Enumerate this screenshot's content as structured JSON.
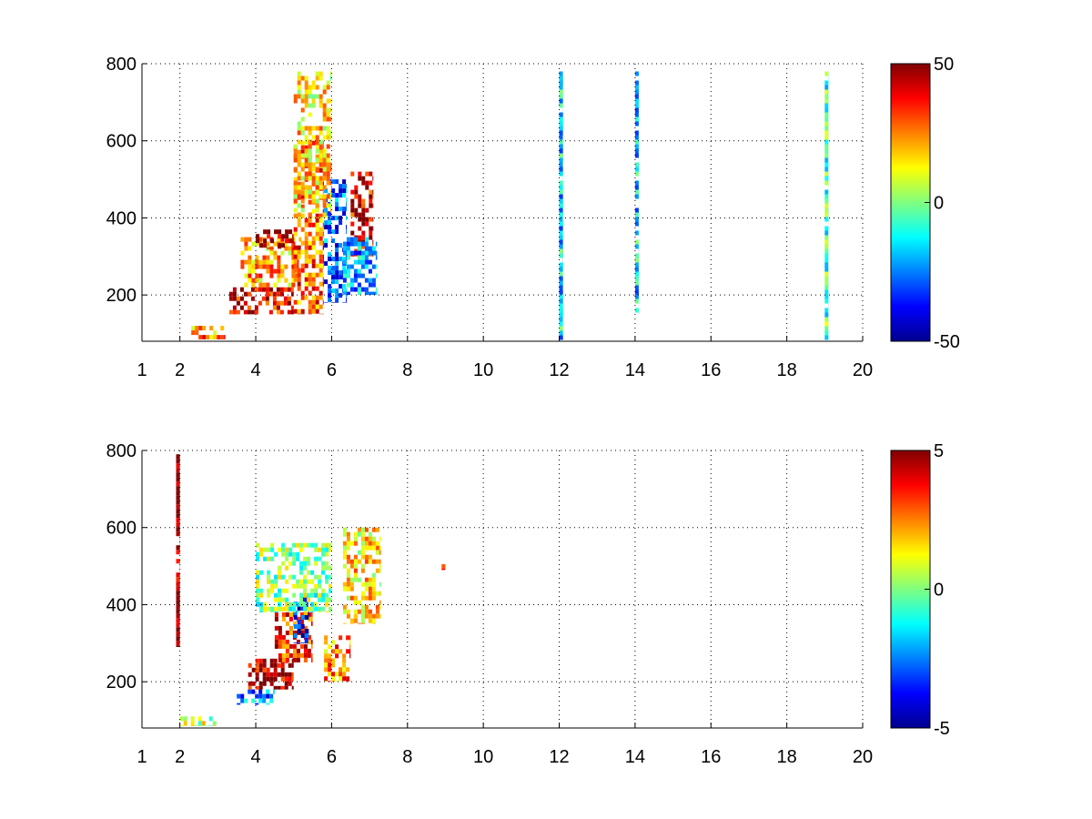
{
  "chart_data": [
    {
      "type": "heatmap",
      "title": "",
      "xlabel": "",
      "ylabel": "",
      "xlim": [
        1,
        20
      ],
      "ylim": [
        80,
        800
      ],
      "xticks": [
        "1",
        "2",
        "4",
        "6",
        "8",
        "10",
        "12",
        "14",
        "16",
        "18",
        "20"
      ],
      "yticks": [
        "200",
        "400",
        "600",
        "800"
      ],
      "grid": true,
      "colormap": "jet",
      "clim": [
        -50,
        50
      ],
      "colorbar_ticks": [
        "50",
        "0",
        "-50"
      ],
      "regions": [
        {
          "x": [
            2.3,
            3.2
          ],
          "y": [
            85,
            120
          ],
          "value": 25
        },
        {
          "x": [
            3.3,
            5.0
          ],
          "y": [
            150,
            220
          ],
          "value": 38
        },
        {
          "x": [
            3.6,
            5.2
          ],
          "y": [
            220,
            350
          ],
          "value": 20
        },
        {
          "x": [
            4.0,
            5.0
          ],
          "y": [
            320,
            370
          ],
          "value": 45
        },
        {
          "x": [
            5.0,
            5.8
          ],
          "y": [
            150,
            600
          ],
          "value": 28
        },
        {
          "x": [
            5.8,
            6.4
          ],
          "y": [
            180,
            500
          ],
          "value": -30
        },
        {
          "x": [
            6.5,
            7.1
          ],
          "y": [
            300,
            520
          ],
          "value": 40
        },
        {
          "x": [
            6.3,
            7.2
          ],
          "y": [
            200,
            350
          ],
          "value": -20
        },
        {
          "x": [
            5.0,
            6.0
          ],
          "y": [
            400,
            780
          ],
          "value": 15
        },
        {
          "x": [
            12.0,
            12.1
          ],
          "y": [
            80,
            780
          ],
          "value": -15
        },
        {
          "x": [
            14.0,
            14.1
          ],
          "y": [
            150,
            780
          ],
          "value": -15
        },
        {
          "x": [
            19.0,
            19.1
          ],
          "y": [
            80,
            780
          ],
          "value": -5
        }
      ]
    },
    {
      "type": "heatmap",
      "title": "",
      "xlabel": "",
      "ylabel": "",
      "xlim": [
        1,
        20
      ],
      "ylim": [
        80,
        800
      ],
      "xticks": [
        "1",
        "2",
        "4",
        "6",
        "8",
        "10",
        "12",
        "14",
        "16",
        "18",
        "20"
      ],
      "yticks": [
        "200",
        "400",
        "600",
        "800"
      ],
      "grid": true,
      "colormap": "jet",
      "clim": [
        -5,
        5
      ],
      "colorbar_ticks": [
        "5",
        "0",
        "-5"
      ],
      "regions": [
        {
          "x": [
            2.0,
            3.0
          ],
          "y": [
            85,
            110
          ],
          "value": 0.5
        },
        {
          "x": [
            3.5,
            4.5
          ],
          "y": [
            140,
            180
          ],
          "value": -2.5
        },
        {
          "x": [
            3.8,
            5.0
          ],
          "y": [
            180,
            260
          ],
          "value": 4.5
        },
        {
          "x": [
            4.5,
            5.5
          ],
          "y": [
            250,
            380
          ],
          "value": 3.5
        },
        {
          "x": [
            5.0,
            5.4
          ],
          "y": [
            300,
            420
          ],
          "value": -4.0
        },
        {
          "x": [
            5.8,
            6.5
          ],
          "y": [
            200,
            320
          ],
          "value": 2.5
        },
        {
          "x": [
            6.3,
            7.3
          ],
          "y": [
            350,
            600
          ],
          "value": 1.5
        },
        {
          "x": [
            4.0,
            6.0
          ],
          "y": [
            380,
            560
          ],
          "value": 0.0
        },
        {
          "x": [
            8.9,
            9.0
          ],
          "y": [
            490,
            505
          ],
          "value": 3.0
        },
        {
          "x": [
            1.9,
            2.0
          ],
          "y": [
            290,
            790
          ],
          "value": 5.0
        }
      ]
    }
  ]
}
